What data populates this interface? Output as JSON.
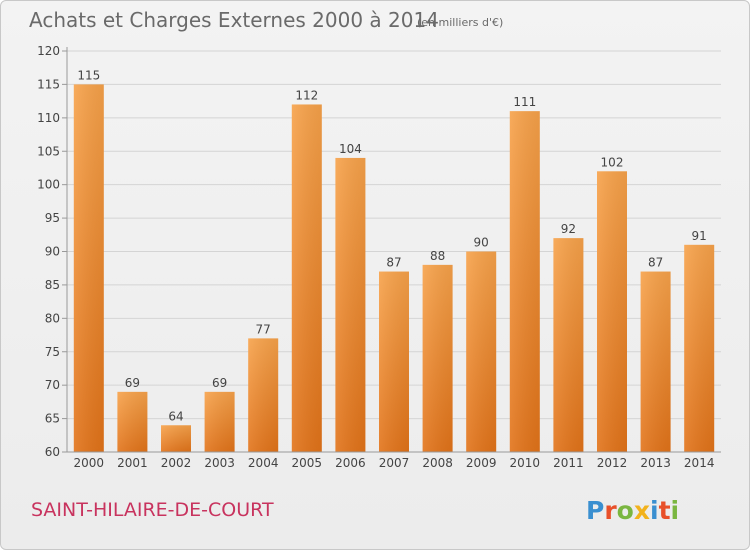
{
  "chart_data": {
    "type": "bar",
    "title": "Achats et Charges Externes 2000 à 2014",
    "subtitle": "(en milliers d'€)",
    "categories": [
      "2000",
      "2001",
      "2002",
      "2003",
      "2004",
      "2005",
      "2006",
      "2007",
      "2008",
      "2009",
      "2010",
      "2011",
      "2012",
      "2013",
      "2014"
    ],
    "values": [
      115,
      69,
      64,
      69,
      77,
      112,
      104,
      87,
      88,
      90,
      111,
      92,
      102,
      87,
      91
    ],
    "ylim": [
      60,
      120
    ],
    "yticks": [
      60,
      65,
      70,
      75,
      80,
      85,
      90,
      95,
      100,
      105,
      110,
      115,
      120
    ],
    "grid": true,
    "bar_color": "#f08a2c"
  },
  "footer": {
    "commune": "SAINT-HILAIRE-DE-COURT",
    "logo_letters": [
      {
        "ch": "P",
        "color": "#3a8fd0"
      },
      {
        "ch": "r",
        "color": "#e8502a"
      },
      {
        "ch": "o",
        "color": "#7ab640"
      },
      {
        "ch": "x",
        "color": "#f2b21c"
      },
      {
        "ch": "i",
        "color": "#3a8fd0"
      },
      {
        "ch": "t",
        "color": "#e8502a"
      },
      {
        "ch": "i",
        "color": "#7ab640"
      }
    ]
  }
}
